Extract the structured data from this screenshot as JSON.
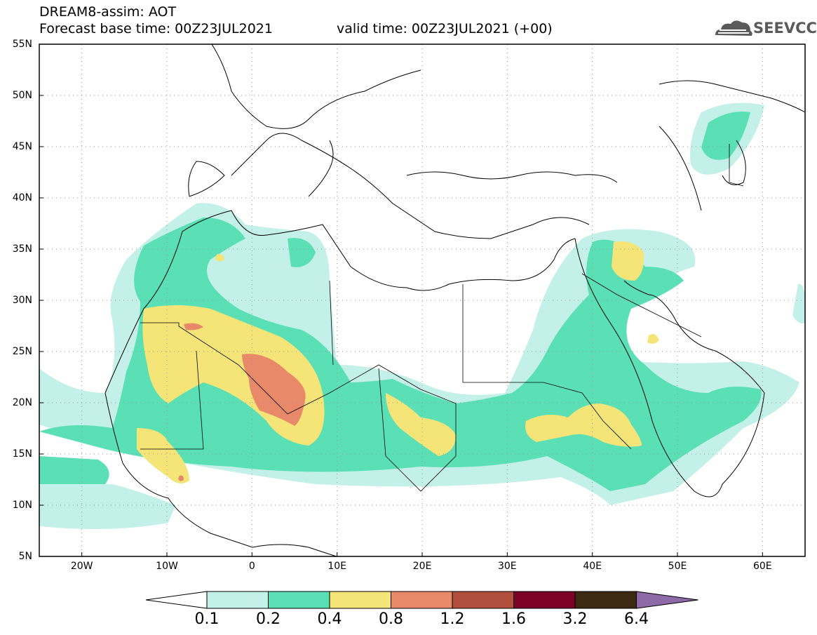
{
  "header": {
    "title": "DREAM8-assim: AOT",
    "base_time": "Forecast base time: 00Z23JUL2021",
    "valid_time": "valid time: 00Z23JUL2021 (+00)",
    "logo_text": "SEEVCCC",
    "logo_icon": "cloud-icon"
  },
  "map": {
    "lon_range": [
      -25,
      65
    ],
    "lat_range": [
      5,
      55
    ],
    "grid": "dotted",
    "lat_labels": [
      "55N",
      "50N",
      "45N",
      "40N",
      "35N",
      "30N",
      "25N",
      "20N",
      "15N",
      "10N",
      "5N"
    ],
    "lon_labels": [
      "20W",
      "10W",
      "0",
      "10E",
      "20E",
      "30E",
      "40E",
      "50E",
      "60E"
    ]
  },
  "colorbar": {
    "labels": [
      "0.1",
      "0.2",
      "0.4",
      "0.8",
      "1.2",
      "1.6",
      "3.2",
      "6.4"
    ],
    "colors": [
      "#ffffff",
      "#c3f0e8",
      "#5be0b5",
      "#f5e477",
      "#e8896a",
      "#b04f3e",
      "#7d0028",
      "#3d2a12",
      "#8e6aa8"
    ]
  }
}
